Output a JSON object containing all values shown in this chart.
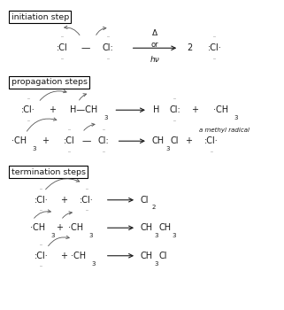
{
  "bg_color": "#ffffff",
  "text_color": "#1a1a1a",
  "figsize": [
    3.21,
    3.5
  ],
  "dpi": 100,
  "xlim": [
    0,
    1
  ],
  "ylim": [
    0,
    1
  ]
}
